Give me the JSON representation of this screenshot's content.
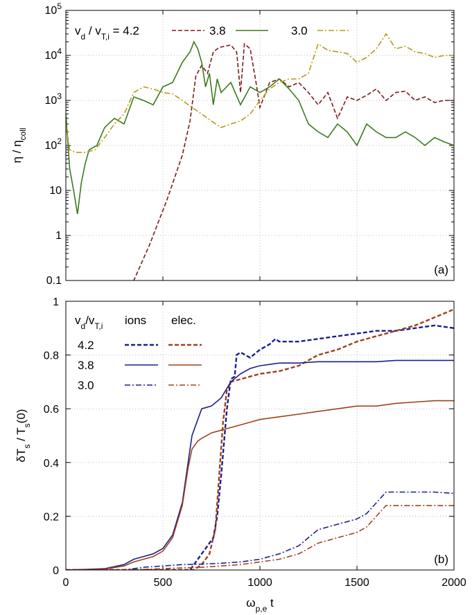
{
  "chart_data": [
    {
      "type": "line",
      "panel_label": "(a)",
      "y_scale": "log",
      "xlim": [
        0,
        2000
      ],
      "ylim": [
        0.1,
        100000
      ],
      "ylabel": "η / η_coll",
      "ylabel_parts": {
        "main": "η / η",
        "sub": "coll"
      },
      "xticks": [
        0,
        500,
        1000,
        1500,
        2000
      ],
      "yticks": [
        {
          "value": 0.1,
          "label": "0.1"
        },
        {
          "value": 1,
          "label": "1"
        },
        {
          "value": 10,
          "label": "10"
        },
        {
          "value": 100,
          "label": "10",
          "sup": "2"
        },
        {
          "value": 1000,
          "label": "10",
          "sup": "3"
        },
        {
          "value": 10000,
          "label": "10",
          "sup": "4"
        },
        {
          "value": 100000,
          "label": "10",
          "sup": "5"
        }
      ],
      "grid": true,
      "legend": {
        "placement": "top",
        "prefix_main": "v",
        "prefix_sub": "d",
        "prefix_mid": " / v",
        "prefix_sub2": "T,i",
        "prefix_eq": " = ",
        "labels": [
          "4.2",
          "3.8",
          "3.0"
        ]
      },
      "series": [
        {
          "name": "4.2",
          "color": "#7b1a1a",
          "dash": "dashed",
          "x": [
            0,
            350,
            430,
            520,
            600,
            640,
            670,
            700,
            730,
            760,
            790,
            820,
            850,
            880,
            900,
            920,
            950,
            980,
            1000,
            1050,
            1100,
            1150,
            1200,
            1250,
            1300,
            1350,
            1400,
            1450,
            1500,
            1550,
            1600,
            1650,
            1700,
            1750,
            1800,
            1850,
            1900,
            1950,
            2000
          ],
          "y": [
            0.05,
            0.1,
            0.6,
            6,
            60,
            350,
            3500,
            6000,
            4000,
            12000,
            15000,
            16000,
            17000,
            12000,
            1500,
            18000,
            14000,
            2500,
            700,
            2500,
            3000,
            2000,
            2500,
            1500,
            800,
            1500,
            400,
            1200,
            1000,
            1300,
            1800,
            1000,
            1500,
            1600,
            1000,
            1200,
            900,
            1000,
            1000
          ]
        },
        {
          "name": "3.8",
          "color": "#3a7a1c",
          "dash": "solid",
          "x": [
            0,
            20,
            40,
            60,
            80,
            100,
            120,
            160,
            200,
            250,
            300,
            350,
            400,
            450,
            500,
            550,
            600,
            640,
            660,
            680,
            700,
            720,
            740,
            760,
            780,
            800,
            850,
            900,
            950,
            1000,
            1050,
            1100,
            1150,
            1200,
            1250,
            1300,
            1350,
            1400,
            1450,
            1500,
            1550,
            1600,
            1650,
            1700,
            1750,
            1800,
            1850,
            1900,
            1950,
            2000
          ],
          "y": [
            500,
            30,
            10,
            3,
            15,
            40,
            80,
            100,
            250,
            400,
            300,
            1200,
            1000,
            800,
            2000,
            2500,
            7000,
            12000,
            20000,
            14000,
            7000,
            2000,
            4000,
            800,
            3000,
            1500,
            2500,
            800,
            2000,
            1500,
            2000,
            3000,
            1800,
            1000,
            300,
            200,
            150,
            300,
            200,
            100,
            300,
            200,
            150,
            150,
            200,
            150,
            100,
            150,
            120,
            100
          ]
        },
        {
          "name": "3.0",
          "color": "#b59a14",
          "dash": "dashdot",
          "x": [
            0,
            20,
            50,
            100,
            150,
            200,
            250,
            300,
            350,
            400,
            450,
            500,
            550,
            600,
            650,
            700,
            750,
            800,
            850,
            900,
            950,
            1000,
            1050,
            1100,
            1150,
            1200,
            1250,
            1300,
            1350,
            1400,
            1450,
            1500,
            1550,
            1600,
            1650,
            1700,
            1750,
            1800,
            1850,
            1900,
            1950,
            2000
          ],
          "y": [
            300,
            80,
            70,
            70,
            80,
            150,
            300,
            500,
            1500,
            2000,
            1800,
            1500,
            1400,
            1000,
            700,
            500,
            350,
            250,
            300,
            350,
            500,
            1000,
            1800,
            2500,
            3000,
            3000,
            4000,
            18000,
            13000,
            12000,
            11000,
            7000,
            9000,
            14000,
            30000,
            14000,
            16000,
            12000,
            11000,
            9000,
            10000,
            10000
          ]
        }
      ]
    },
    {
      "type": "line",
      "panel_label": "(b)",
      "xlim": [
        0,
        2000
      ],
      "ylim": [
        0,
        1
      ],
      "xlabel": "ω_p,e t",
      "xlabel_parts": {
        "main": "ω",
        "sub": "p,e",
        "tail": " t"
      },
      "ylabel": "δT_s / T_s(0)",
      "ylabel_parts": {
        "a": "δT",
        "sub1": "s",
        "b": " / T",
        "sub2": "s",
        "c": "(0)"
      },
      "xticks": [
        0,
        500,
        1000,
        1500,
        2000
      ],
      "yticks": [
        0,
        0.2,
        0.4,
        0.6,
        0.8,
        1
      ],
      "ytick_labels": [
        "0",
        "0.2",
        "0.4",
        "0.6",
        "0.8",
        "1"
      ],
      "grid": true,
      "legend": {
        "placement": "top-left",
        "header_main": "v",
        "header_sub": "d",
        "header_mid": "/v",
        "header_sub2": "T,i",
        "col_ions": "ions",
        "col_elec": "elec.",
        "rows": [
          "4.2",
          "3.8",
          "3.0"
        ]
      },
      "colors": {
        "ions": "#1a1f8c",
        "elec": "#a0401a"
      },
      "series": [
        {
          "name": "ions 4.2",
          "group": "ions",
          "dash": "dashed",
          "x": [
            0,
            300,
            640,
            660,
            680,
            700,
            720,
            740,
            760,
            780,
            800,
            830,
            850,
            870,
            880,
            900,
            950,
            1000,
            1050,
            1080,
            1100,
            1200,
            1300,
            1400,
            1500,
            1600,
            1700,
            1800,
            1900,
            2000
          ],
          "y": [
            0,
            0,
            0,
            0.02,
            0.04,
            0.06,
            0.08,
            0.1,
            0.12,
            0.2,
            0.35,
            0.6,
            0.71,
            0.72,
            0.8,
            0.81,
            0.79,
            0.82,
            0.84,
            0.86,
            0.85,
            0.85,
            0.86,
            0.87,
            0.88,
            0.89,
            0.89,
            0.9,
            0.91,
            0.9
          ]
        },
        {
          "name": "elec 4.2",
          "group": "elec",
          "dash": "dashed",
          "x": [
            0,
            300,
            660,
            700,
            740,
            770,
            790,
            810,
            830,
            850,
            900,
            1000,
            1100,
            1200,
            1300,
            1400,
            1500,
            1600,
            1700,
            1800,
            1900,
            2000
          ],
          "y": [
            0,
            0,
            0,
            0.02,
            0.06,
            0.15,
            0.35,
            0.55,
            0.67,
            0.7,
            0.71,
            0.73,
            0.74,
            0.76,
            0.8,
            0.82,
            0.85,
            0.87,
            0.89,
            0.91,
            0.94,
            0.97
          ]
        },
        {
          "name": "ions 3.8",
          "group": "ions",
          "dash": "solid",
          "x": [
            0,
            200,
            300,
            350,
            400,
            450,
            500,
            550,
            600,
            630,
            650,
            680,
            700,
            750,
            800,
            850,
            900,
            950,
            1000,
            1100,
            1200,
            1300,
            1400,
            1500,
            1600,
            1700,
            1800,
            1900,
            2000
          ],
          "y": [
            0,
            0.005,
            0.02,
            0.04,
            0.05,
            0.06,
            0.08,
            0.13,
            0.25,
            0.4,
            0.5,
            0.56,
            0.6,
            0.61,
            0.64,
            0.7,
            0.73,
            0.75,
            0.76,
            0.77,
            0.77,
            0.775,
            0.775,
            0.775,
            0.775,
            0.78,
            0.78,
            0.78,
            0.78
          ]
        },
        {
          "name": "elec 3.8",
          "group": "elec",
          "dash": "solid",
          "x": [
            0,
            200,
            300,
            350,
            400,
            450,
            500,
            550,
            600,
            630,
            650,
            680,
            700,
            750,
            800,
            850,
            900,
            950,
            1000,
            1100,
            1200,
            1300,
            1400,
            1500,
            1600,
            1700,
            1800,
            1900,
            2000
          ],
          "y": [
            0,
            0.003,
            0.015,
            0.03,
            0.04,
            0.05,
            0.07,
            0.12,
            0.24,
            0.38,
            0.45,
            0.48,
            0.49,
            0.51,
            0.52,
            0.53,
            0.54,
            0.55,
            0.56,
            0.57,
            0.58,
            0.59,
            0.6,
            0.61,
            0.61,
            0.62,
            0.625,
            0.63,
            0.63
          ]
        },
        {
          "name": "ions 3.0",
          "group": "ions",
          "dash": "dashdot",
          "x": [
            0,
            200,
            300,
            400,
            500,
            600,
            700,
            800,
            900,
            1000,
            1100,
            1200,
            1250,
            1300,
            1350,
            1400,
            1450,
            1500,
            1550,
            1600,
            1650,
            1700,
            1800,
            1900,
            2000
          ],
          "y": [
            0,
            0,
            0,
            0.01,
            0.015,
            0.02,
            0.022,
            0.025,
            0.03,
            0.04,
            0.06,
            0.09,
            0.12,
            0.15,
            0.16,
            0.17,
            0.18,
            0.19,
            0.21,
            0.25,
            0.29,
            0.29,
            0.29,
            0.29,
            0.285
          ]
        },
        {
          "name": "elec 3.0",
          "group": "elec",
          "dash": "dashdot",
          "x": [
            0,
            300,
            400,
            500,
            600,
            700,
            800,
            900,
            1000,
            1100,
            1200,
            1250,
            1300,
            1350,
            1400,
            1450,
            1500,
            1550,
            1600,
            1650,
            1700,
            1800,
            1900,
            2000
          ],
          "y": [
            0,
            0,
            0.002,
            0.005,
            0.008,
            0.01,
            0.015,
            0.02,
            0.03,
            0.04,
            0.06,
            0.08,
            0.1,
            0.11,
            0.12,
            0.13,
            0.14,
            0.16,
            0.2,
            0.24,
            0.24,
            0.24,
            0.24,
            0.24
          ]
        }
      ]
    }
  ]
}
